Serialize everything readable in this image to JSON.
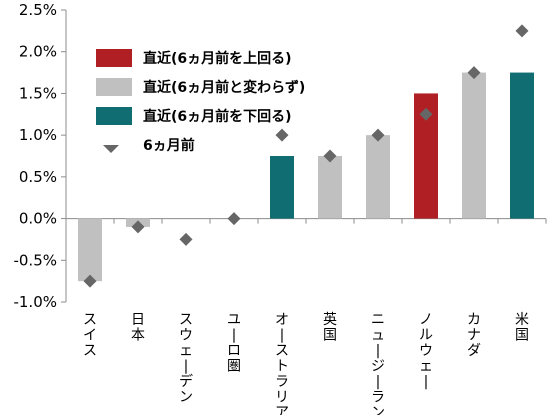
{
  "chart_data": {
    "type": "bar",
    "categories": [
      "スイス",
      "日本",
      "スウェーデン",
      "ユーロ圏",
      "オーストラリア",
      "英国",
      "ニュージーランド",
      "ノルウェー",
      "カナダ",
      "米国"
    ],
    "series": [
      {
        "role": "current",
        "values": [
          -0.75,
          -0.1,
          null,
          null,
          0.75,
          0.75,
          1.0,
          1.5,
          1.75,
          1.75
        ],
        "status": [
          "same",
          "same",
          "same",
          "same",
          "below",
          "same",
          "same",
          "above",
          "same",
          "below"
        ]
      },
      {
        "name": "6ヵ月前",
        "role": "six_months_ago",
        "values": [
          -0.75,
          -0.1,
          -0.25,
          0.0,
          1.0,
          0.75,
          1.0,
          1.25,
          1.75,
          2.25
        ]
      }
    ],
    "legend": [
      {
        "key": "above",
        "label": "直近(6ヵ月前を上回る)",
        "color": "#b01f24",
        "shape": "rect"
      },
      {
        "key": "same",
        "label": "直近(6ヵ月前と変わらず)",
        "color": "#c0c0c0",
        "shape": "rect"
      },
      {
        "key": "below",
        "label": "直近(6ヵ月前を下回る)",
        "color": "#106e72",
        "shape": "rect"
      },
      {
        "key": "prev",
        "label": "6ヵ月前",
        "color": "#666666",
        "shape": "diamond"
      }
    ],
    "legend_position": "top-left",
    "y_ticks": [
      "2.5%",
      "2.0%",
      "1.5%",
      "1.0%",
      "0.5%",
      "0.0%",
      "-0.5%",
      "-1.0%"
    ],
    "y_tick_values": [
      2.5,
      2.0,
      1.5,
      1.0,
      0.5,
      0.0,
      -0.5,
      -1.0
    ],
    "ylim": [
      -1.0,
      2.5
    ],
    "grid": false
  }
}
